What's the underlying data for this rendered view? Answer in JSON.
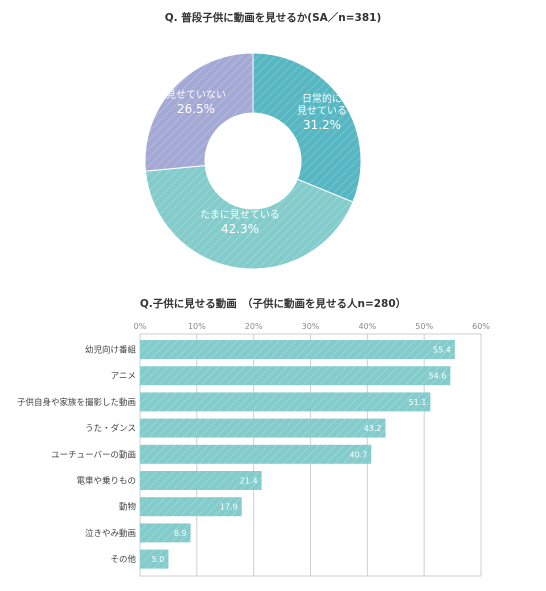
{
  "chart_data": [
    {
      "type": "pie",
      "title": "Q. 普段子供に動画を見せるか(SA／n=381)",
      "slices": [
        {
          "label_lines": [
            "日常的に",
            "見せている"
          ],
          "value": 31.2,
          "value_label": "31.2%",
          "color": "#56b7c2"
        },
        {
          "label_lines": [
            "たまに見せている"
          ],
          "value": 42.3,
          "value_label": "42.3%",
          "color": "#84cccc"
        },
        {
          "label_lines": [
            "見せていない"
          ],
          "value": 26.5,
          "value_label": "26.5%",
          "color": "#a3a9d4"
        }
      ],
      "donut": true
    },
    {
      "type": "bar",
      "orientation": "horizontal",
      "title": "Q.子供に見せる動画　（子供に動画を見せる人n=280）",
      "categories": [
        "幼児向け番組",
        "アニメ",
        "子供自身や家族を撮影した動画",
        "うた・ダンス",
        "ユーチューバーの動画",
        "電車や乗りもの",
        "動物",
        "泣きやみ動画",
        "その他"
      ],
      "values": [
        55.4,
        54.6,
        51.1,
        43.2,
        40.7,
        21.4,
        17.9,
        8.9,
        5.0
      ],
      "value_labels": [
        "55.4",
        "54.6",
        "51.1",
        "43.2",
        "40.7",
        "21.4",
        "17.9",
        "8.9",
        "5.0"
      ],
      "xlim": [
        0,
        60
      ],
      "xticks": [
        "0%",
        "10%",
        "20%",
        "30%",
        "40%",
        "50%",
        "60%"
      ],
      "bar_color": "#84cccc",
      "grid": true
    }
  ]
}
